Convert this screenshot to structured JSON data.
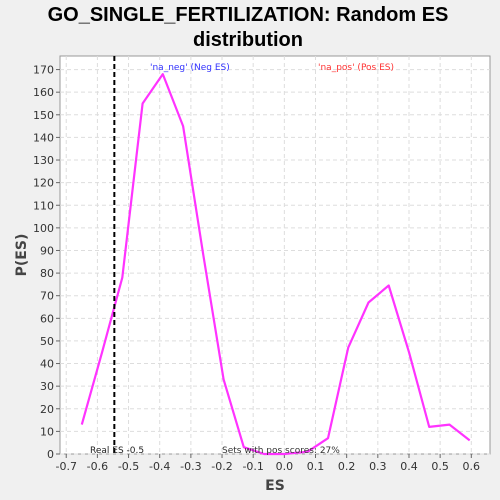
{
  "chart_data": {
    "type": "line",
    "title": "GO_SINGLE_FERTILIZATION: Random ES distribution",
    "xlabel": "ES",
    "ylabel": "P(ES)",
    "xlim": [
      -0.72,
      0.66
    ],
    "ylim": [
      0,
      176
    ],
    "x_ticks": [
      -0.7,
      -0.6,
      -0.5,
      -0.4,
      -0.3,
      -0.2,
      -0.1,
      0.0,
      0.1,
      0.2,
      0.3,
      0.4,
      0.5,
      0.6
    ],
    "x_tick_labels": [
      "-0.7",
      "-0.6",
      "-0.5",
      "-0.4",
      "-0.3",
      "-0.2",
      "-0.1",
      "0.0",
      "0.1",
      "0.2",
      "0.3",
      "0.4",
      "0.5",
      "0.6"
    ],
    "y_ticks": [
      0,
      10,
      20,
      30,
      40,
      50,
      60,
      70,
      80,
      90,
      100,
      110,
      120,
      130,
      140,
      150,
      160,
      170
    ],
    "grid": true,
    "series": [
      {
        "color": "#ff33ff",
        "x": [
          -0.65,
          -0.585,
          -0.52,
          -0.455,
          -0.39,
          -0.325,
          -0.26,
          -0.195,
          -0.13,
          -0.065,
          0.0,
          0.075,
          0.14,
          0.205,
          0.27,
          0.335,
          0.4,
          0.465,
          0.53,
          0.595
        ],
        "y": [
          13,
          45,
          78,
          155,
          168,
          145,
          88,
          33,
          3,
          0,
          0,
          1,
          7,
          47,
          67,
          74.5,
          45,
          12,
          13,
          6
        ]
      }
    ],
    "real_es": {
      "value": -0.5456,
      "label": "Real ES -0.5"
    },
    "annotations": {
      "neg": {
        "text": "'na_neg' (Neg ES)",
        "color": "#3333ff"
      },
      "pos": {
        "text": "'na_pos' (Pos ES)",
        "color": "#ff3333"
      },
      "pos_scores": {
        "text": "Sets with pos scores: 27%",
        "color": "#333333"
      }
    },
    "colors": {
      "plot_bg": "#ffffff",
      "page_bg": "#f0f0f0",
      "grid": "#dddddd",
      "line": "#ff33ff"
    }
  }
}
